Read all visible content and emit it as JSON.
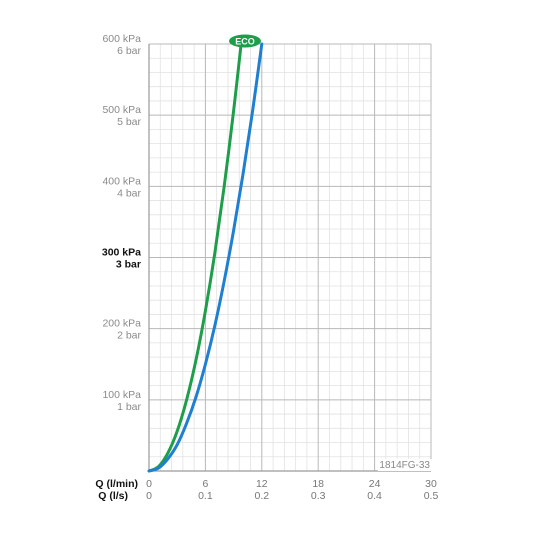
{
  "chart_data": {
    "type": "line",
    "code_label": "1814FG-33",
    "eco_badge": "ECO",
    "y_tick_labels": [
      {
        "value": 100,
        "kpa": "100 kPa",
        "bar": "1 bar",
        "bold": false
      },
      {
        "value": 200,
        "kpa": "200 kPa",
        "bar": "2 bar",
        "bold": false
      },
      {
        "value": 300,
        "kpa": "300 kPa",
        "bar": "3 bar",
        "bold": true
      },
      {
        "value": 400,
        "kpa": "400 kPa",
        "bar": "4 bar",
        "bold": false
      },
      {
        "value": 500,
        "kpa": "500 kPa",
        "bar": "5 bar",
        "bold": false
      },
      {
        "value": 600,
        "kpa": "600 kPa",
        "bar": "6 bar",
        "bold": false
      }
    ],
    "x_axis_primary": {
      "label": "Q (l/min)",
      "ticks": [
        {
          "value": 0,
          "label": "0"
        },
        {
          "value": 6,
          "label": "6"
        },
        {
          "value": 12,
          "label": "12"
        },
        {
          "value": 18,
          "label": "18"
        },
        {
          "value": 24,
          "label": "24"
        },
        {
          "value": 30,
          "label": "30"
        }
      ]
    },
    "x_axis_secondary": {
      "label": "Q (l/s)",
      "ticks": [
        {
          "value": 0,
          "label": "0"
        },
        {
          "value": 6,
          "label": "0.1"
        },
        {
          "value": 12,
          "label": "0.2"
        },
        {
          "value": 18,
          "label": "0.3"
        },
        {
          "value": 24,
          "label": "0.4"
        },
        {
          "value": 30,
          "label": "0.5"
        }
      ]
    },
    "xlim": [
      0,
      30
    ],
    "ylim": [
      0,
      600
    ],
    "grid": true,
    "grid_step_x": 1.2,
    "grid_step_y": 20,
    "series": [
      {
        "color": "#1e9e4a",
        "x": [
          0,
          1,
          2,
          3,
          4,
          5,
          6,
          7,
          8,
          9,
          9.8
        ],
        "y": [
          0,
          6,
          25,
          56,
          100,
          156,
          225,
          306,
          400,
          506,
          600
        ]
      },
      {
        "color": "#1f7fd1",
        "x": [
          0,
          1,
          2,
          3,
          4,
          5,
          6,
          7,
          8,
          9,
          10,
          11,
          12
        ],
        "y": [
          0,
          4,
          17,
          37,
          67,
          104,
          150,
          204,
          267,
          338,
          417,
          504,
          600
        ]
      }
    ]
  }
}
